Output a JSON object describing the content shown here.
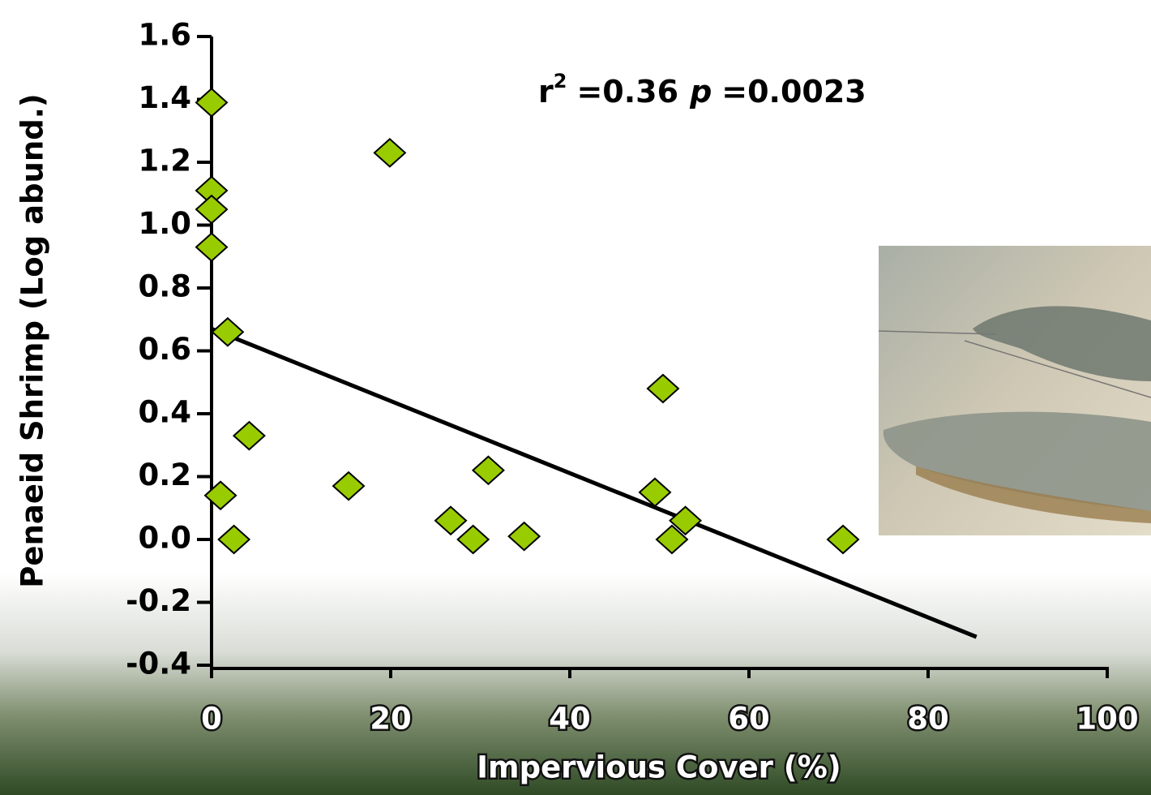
{
  "chart_data": {
    "type": "scatter",
    "x_label": "Impervious Cover (%)",
    "y_label": "Penaeid Shrimp (Log abund.)",
    "annotation": {
      "r": "r",
      "exponent": "2",
      "r_value": "=0.36",
      "p": "p",
      "p_value": "=0.0023"
    },
    "series": [
      {
        "color": "#99cc00",
        "x": [
          0,
          0,
          0,
          0,
          1.8,
          1.0,
          2.5,
          4.2,
          15.3,
          19.9,
          26.7,
          29.2,
          30.9,
          34.9,
          49.5,
          50.4,
          51.4,
          52.9,
          70.5
        ],
        "values": [
          1.39,
          1.11,
          1.05,
          0.93,
          0.66,
          0.14,
          0.0,
          0.33,
          0.17,
          1.23,
          0.06,
          0.0,
          0.22,
          0.01,
          0.15,
          0.48,
          0.0,
          0.06,
          0.0
        ]
      }
    ],
    "trendline": {
      "x": [
        0,
        85.4
      ],
      "values": [
        0.67,
        -0.31
      ],
      "color": "#000000"
    },
    "xlim": [
      0,
      100
    ],
    "xticks": [
      0,
      20,
      40,
      60,
      80,
      100
    ],
    "ylim": [
      -0.4,
      1.6
    ],
    "yticks": [
      -0.4,
      -0.2,
      {
        "value": 0,
        "label": "0.0"
      },
      0.2,
      0.4,
      0.6,
      0.8,
      {
        "value": 1,
        "label": "1.0"
      },
      1.2,
      1.4,
      1.6
    ]
  }
}
